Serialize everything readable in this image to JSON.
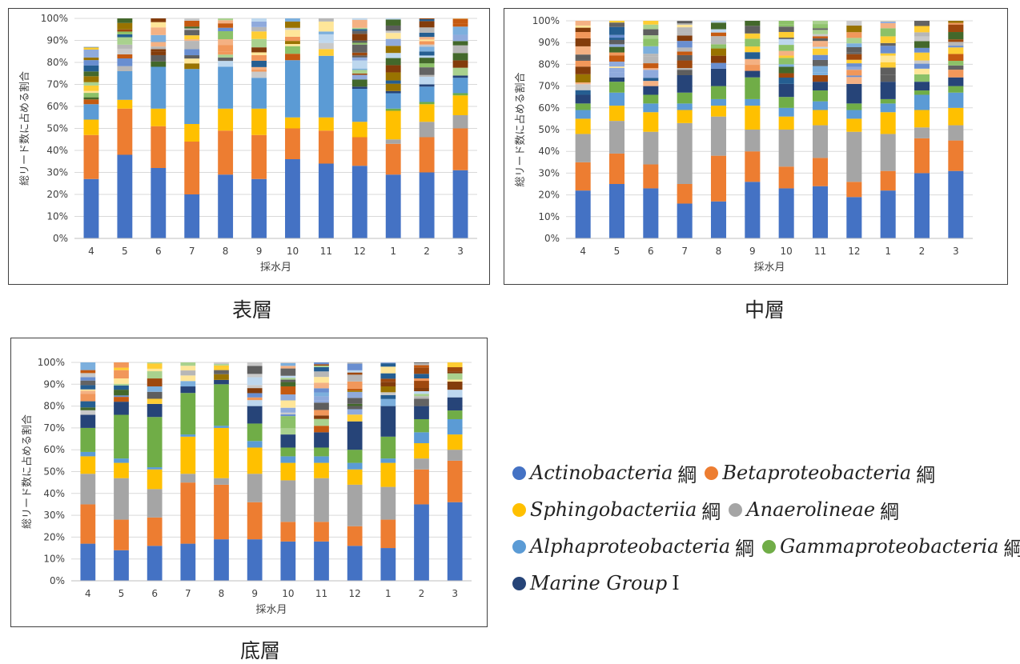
{
  "captions": {
    "surface": "表層",
    "middle": "中層",
    "bottom": "底層"
  },
  "colors": {
    "Actinobacteria": "#4472c4",
    "Betaproteobacteria": "#ed7d31",
    "Sphingobacteriia": "#ffc000",
    "Anaerolineae": "#a5a5a5",
    "Alphaproteobacteria": "#5b9bd5",
    "Gammaproteobacteria": "#70ad47",
    "Marine Group I": "#264478",
    "other_palette": [
      "#9e480e",
      "#997300",
      "#636363",
      "#255e91",
      "#43682b",
      "#7cafdd",
      "#f1975a",
      "#b7b7b7",
      "#ffcd33",
      "#698ed0",
      "#8cc168",
      "#c55a11",
      "#833c0b",
      "#5e5e5e",
      "#c9c9c9",
      "#a9d18e",
      "#f4b183",
      "#ffe699",
      "#bdd7ee",
      "#8faadc"
    ]
  },
  "legend": [
    {
      "name": "Actinobacteria",
      "suffix": "綱",
      "color": "#4472c4"
    },
    {
      "name": "Betaproteobacteria",
      "suffix": "綱",
      "color": "#ed7d31"
    },
    {
      "name": "Sphingobacteriia",
      "suffix": "綱",
      "color": "#ffc000"
    },
    {
      "name": "Anaerolineae",
      "suffix": "綱",
      "color": "#a5a5a5"
    },
    {
      "name": "Alphaproteobacteria",
      "suffix": "綱",
      "color": "#5b9bd5"
    },
    {
      "name": "Gammaproteobacteria",
      "suffix": "綱",
      "color": "#70ad47"
    },
    {
      "name": "Marine Group",
      "suffix": "I",
      "color": "#264478"
    }
  ],
  "chart_data": [
    {
      "id": "surface",
      "type": "bar",
      "stacked": true,
      "title": "",
      "xlabel": "採水月",
      "ylabel": "総リード数に占める割合",
      "ylim": [
        0,
        100
      ],
      "yticks": [
        "0%",
        "10%",
        "20%",
        "30%",
        "40%",
        "50%",
        "60%",
        "70%",
        "80%",
        "90%",
        "100%"
      ],
      "categories": [
        "4",
        "5",
        "6",
        "7",
        "8",
        "9",
        "10",
        "11",
        "12",
        "1",
        "2",
        "3"
      ],
      "series": [
        {
          "name": "Actinobacteria",
          "values": [
            27,
            38,
            32,
            20,
            29,
            27,
            36,
            34,
            33,
            29,
            30,
            31
          ]
        },
        {
          "name": "Betaproteobacteria",
          "values": [
            20,
            21,
            19,
            24,
            20,
            20,
            14,
            15,
            13,
            14,
            16,
            19
          ]
        },
        {
          "name": "Anaerolineae",
          "values": [
            0,
            0,
            0,
            0,
            0,
            0,
            0,
            0,
            0,
            2,
            7,
            6
          ]
        },
        {
          "name": "Sphingobacteriia",
          "values": [
            7,
            4,
            8,
            8,
            10,
            12,
            5,
            6,
            7,
            13,
            8,
            9
          ]
        },
        {
          "name": "Gammaproteobacteria",
          "values": [
            0,
            0,
            0,
            0,
            0,
            0,
            0,
            0,
            0,
            1,
            1,
            1
          ]
        },
        {
          "name": "Alphaproteobacteria",
          "values": [
            7,
            13,
            19,
            25,
            19,
            14,
            26,
            28,
            15,
            7,
            7,
            7
          ]
        },
        {
          "name": "Marine Group I",
          "values": [
            0,
            0,
            0,
            0,
            0,
            0,
            0,
            0,
            1,
            1,
            1,
            1
          ]
        }
      ],
      "others": [
        26,
        24,
        22,
        23,
        22,
        27,
        19,
        17,
        31,
        33,
        30,
        26
      ]
    },
    {
      "id": "middle",
      "type": "bar",
      "stacked": true,
      "title": "",
      "xlabel": "採水月",
      "ylabel": "総リード数に占める割合",
      "ylim": [
        0,
        100
      ],
      "yticks": [
        "0%",
        "10%",
        "20%",
        "30%",
        "40%",
        "50%",
        "60%",
        "70%",
        "80%",
        "90%",
        "100%"
      ],
      "categories": [
        "4",
        "5",
        "6",
        "7",
        "8",
        "9",
        "10",
        "11",
        "12",
        "1",
        "2",
        "3"
      ],
      "series": [
        {
          "name": "Actinobacteria",
          "values": [
            22,
            25,
            23,
            16,
            17,
            26,
            23,
            24,
            19,
            22,
            30,
            31
          ]
        },
        {
          "name": "Betaproteobacteria",
          "values": [
            13,
            14,
            11,
            9,
            21,
            14,
            10,
            13,
            7,
            9,
            16,
            14
          ]
        },
        {
          "name": "Anaerolineae",
          "values": [
            13,
            15,
            15,
            28,
            18,
            10,
            17,
            15,
            23,
            17,
            5,
            7
          ]
        },
        {
          "name": "Sphingobacteriia",
          "values": [
            7,
            7,
            9,
            6,
            5,
            11,
            6,
            7,
            6,
            10,
            8,
            8
          ]
        },
        {
          "name": "Alphaproteobacteria",
          "values": [
            4,
            6,
            4,
            3,
            3,
            3,
            4,
            4,
            4,
            4,
            7,
            7
          ]
        },
        {
          "name": "Gammaproteobacteria",
          "values": [
            3,
            5,
            4,
            5,
            6,
            10,
            5,
            5,
            3,
            2,
            2,
            3
          ]
        },
        {
          "name": "Marine Group I",
          "values": [
            4,
            2,
            4,
            8,
            8,
            3,
            6,
            4,
            9,
            8,
            4,
            4
          ]
        }
      ],
      "others": [
        34,
        26,
        30,
        25,
        22,
        23,
        29,
        28,
        29,
        28,
        28,
        26
      ]
    },
    {
      "id": "bottom",
      "type": "bar",
      "stacked": true,
      "title": "",
      "xlabel": "採水月",
      "ylabel": "総リード数に占める割合",
      "ylim": [
        0,
        100
      ],
      "yticks": [
        "0%",
        "10%",
        "20%",
        "30%",
        "40%",
        "50%",
        "60%",
        "70%",
        "80%",
        "90%",
        "100%"
      ],
      "categories": [
        "4",
        "5",
        "6",
        "7",
        "8",
        "9",
        "10",
        "11",
        "12",
        "1",
        "2",
        "3"
      ],
      "series": [
        {
          "name": "Actinobacteria",
          "values": [
            17,
            14,
            16,
            17,
            19,
            19,
            18,
            18,
            16,
            15,
            35,
            36
          ]
        },
        {
          "name": "Betaproteobacteria",
          "values": [
            18,
            14,
            13,
            28,
            25,
            17,
            9,
            9,
            9,
            13,
            16,
            19
          ]
        },
        {
          "name": "Anaerolineae",
          "values": [
            14,
            19,
            13,
            4,
            3,
            13,
            19,
            20,
            19,
            15,
            5,
            5
          ]
        },
        {
          "name": "Sphingobacteriia",
          "values": [
            8,
            7,
            9,
            17,
            23,
            12,
            8,
            7,
            7,
            11,
            7,
            7
          ]
        },
        {
          "name": "Alphaproteobacteria",
          "values": [
            2,
            2,
            1,
            1,
            1,
            3,
            3,
            3,
            3,
            2,
            5,
            7
          ]
        },
        {
          "name": "Gammaproteobacteria",
          "values": [
            11,
            20,
            23,
            19,
            19,
            8,
            4,
            4,
            6,
            10,
            6,
            4
          ]
        },
        {
          "name": "Marine Group I",
          "values": [
            6,
            6,
            6,
            3,
            2,
            8,
            6,
            7,
            13,
            14,
            6,
            6
          ]
        }
      ],
      "others": [
        24,
        18,
        19,
        11,
        8,
        20,
        33,
        32,
        27,
        20,
        20,
        16
      ]
    }
  ]
}
